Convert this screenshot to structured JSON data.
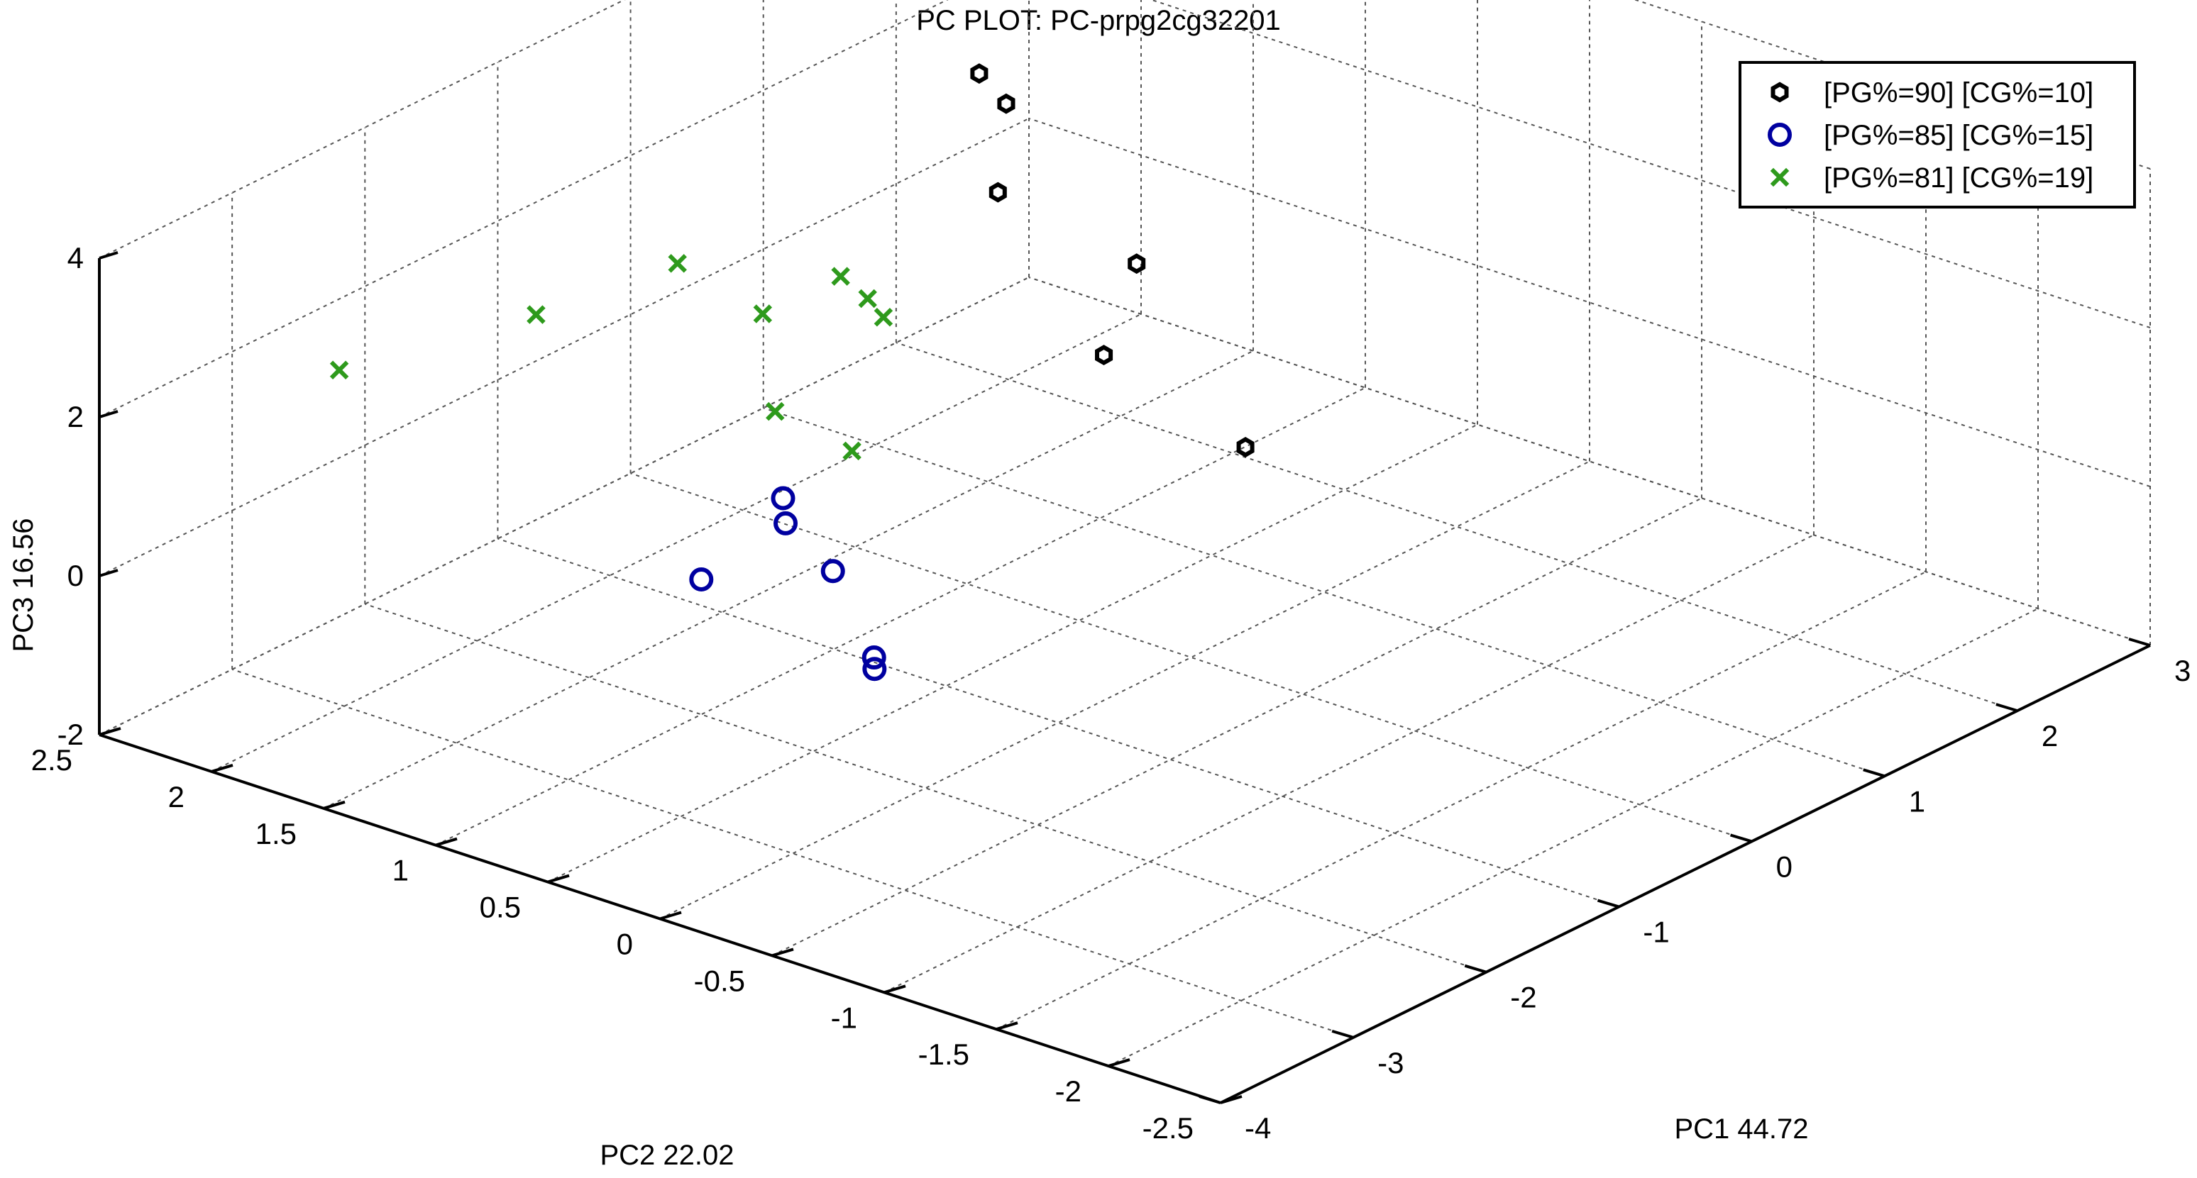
{
  "chart_data": {
    "type": "scatter",
    "title": "PC PLOT: PC-prpg2cg32201",
    "xlabel": "PC1 44.72",
    "ylabel": "PC2 22.02",
    "zlabel": "PC3 16.56",
    "xlim": [
      -4,
      3
    ],
    "ylim": [
      -2.5,
      2.5
    ],
    "zlim": [
      -2,
      4
    ],
    "xticks": [
      -4,
      -3,
      -2,
      -1,
      0,
      1,
      2,
      3
    ],
    "yticks": [
      -2.5,
      -2,
      -1.5,
      -1,
      -0.5,
      0,
      0.5,
      1,
      1.5,
      2,
      2.5
    ],
    "zticks": [
      -2,
      0,
      2,
      4
    ],
    "grid": true,
    "legend_position": "top-right",
    "series": [
      {
        "name": "[PG%=90] [CG%=10]",
        "color": "#000000",
        "marker": "hexagon",
        "points": [
          {
            "x": 1.9,
            "y": 1.95,
            "z": 1.6
          },
          {
            "x": 1.95,
            "y": 2.1,
            "z": 1.8
          },
          {
            "x": 1.5,
            "y": 1.75,
            "z": 1.0
          },
          {
            "x": 1.7,
            "y": 1.25,
            "z": 0.4
          },
          {
            "x": 1.2,
            "y": 1.1,
            "z": -0.2
          },
          {
            "x": 1.0,
            "y": 0.35,
            "z": -0.5
          }
        ]
      },
      {
        "name": "[PG%=85] [CG%=15]",
        "color": "#0000a0",
        "marker": "circle",
        "points": [
          {
            "x": -2.0,
            "y": 1.0,
            "z": -0.3
          },
          {
            "x": -1.6,
            "y": 0.65,
            "z": -0.2
          },
          {
            "x": -1.45,
            "y": 0.95,
            "z": 0.0
          },
          {
            "x": -1.3,
            "y": 1.05,
            "z": 0.1
          },
          {
            "x": -2.05,
            "y": 0.2,
            "z": -0.5
          },
          {
            "x": -2.3,
            "y": 0.05,
            "z": -0.3
          }
        ]
      },
      {
        "name": "[PG%=81] [CG%=19]",
        "color": "#2e9a1c",
        "marker": "x",
        "points": [
          {
            "x": -2.7,
            "y": 2.2,
            "z": 1.8
          },
          {
            "x": -2.4,
            "y": 1.5,
            "z": 2.9
          },
          {
            "x": -1.2,
            "y": 1.2,
            "z": 2.2
          },
          {
            "x": -0.6,
            "y": 1.5,
            "z": 0.2
          },
          {
            "x": -0.95,
            "y": 0.95,
            "z": 0.5
          },
          {
            "x": 0.1,
            "y": 2.35,
            "z": 0.7
          },
          {
            "x": 0.4,
            "y": 1.8,
            "z": 0.8
          },
          {
            "x": 0.35,
            "y": 1.65,
            "z": 0.7
          },
          {
            "x": 0.3,
            "y": 1.55,
            "z": 0.6
          }
        ]
      }
    ]
  }
}
